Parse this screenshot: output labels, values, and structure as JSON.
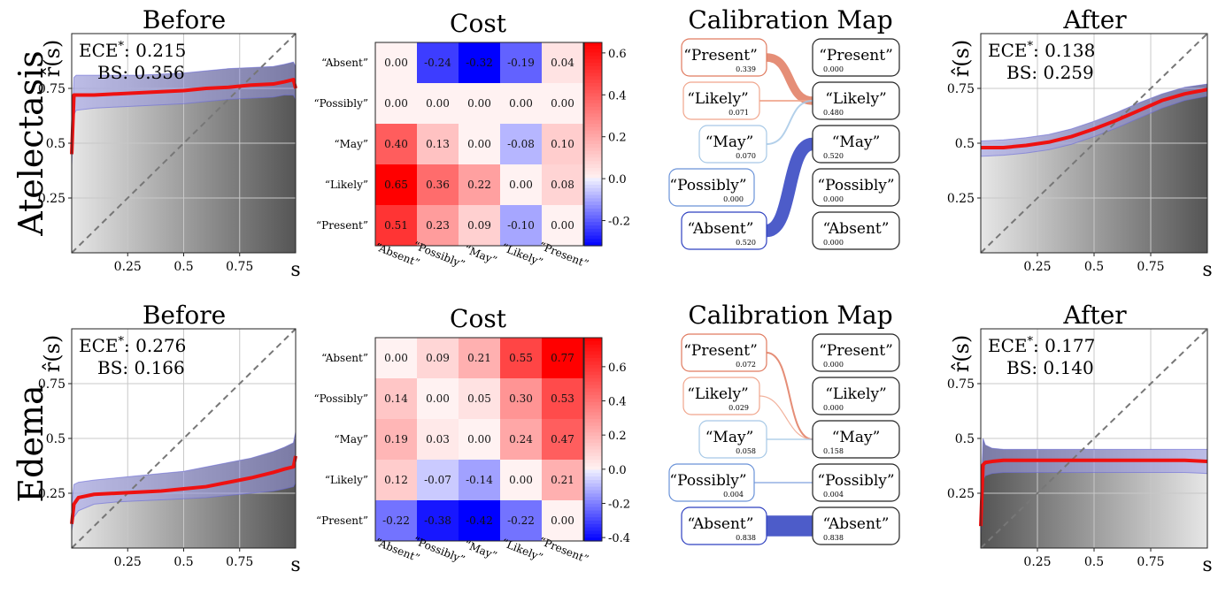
{
  "row_labels": [
    "Atelectasis",
    "Edema"
  ],
  "panel_titles": {
    "before": "Before",
    "cost": "Cost",
    "map": "Calibration Map",
    "after": "After"
  },
  "axes": {
    "y_label": "r̂(s)",
    "x_label": "s",
    "x_ticks": [
      "0.25",
      "0.5",
      "0.75"
    ],
    "y_ticks": [
      "0.25",
      "0.5",
      "0.75"
    ]
  },
  "labels": [
    "“Absent”",
    "“Possibly”",
    "“May”",
    "“Likely”",
    "“Present”"
  ],
  "colors": {
    "calibration_line": "#ee1111",
    "band": "#9a9ae8",
    "diagonal": "#777777",
    "cost_min": "#0000ff",
    "cost_max": "#ff0000",
    "map_present": "#e07050",
    "map_absent": "#2e40c0"
  },
  "chart_data": [
    {
      "type": "line",
      "panel": "before",
      "row": "Atelectasis",
      "title": "Before",
      "xlabel": "s",
      "ylabel": "r̂(s)",
      "metrics": {
        "ECE": "0.215",
        "BS": "0.356"
      },
      "xlim": [
        0,
        1
      ],
      "ylim": [
        0,
        1
      ],
      "diagonal": true,
      "x": [
        0,
        0.01,
        0.02,
        0.1,
        0.2,
        0.3,
        0.4,
        0.5,
        0.6,
        0.7,
        0.8,
        0.9,
        0.95,
        0.99,
        1.0
      ],
      "y": [
        0.45,
        0.72,
        0.72,
        0.72,
        0.725,
        0.73,
        0.735,
        0.74,
        0.75,
        0.755,
        0.765,
        0.77,
        0.78,
        0.79,
        0.75
      ],
      "upper": [
        0.55,
        0.8,
        0.81,
        0.81,
        0.81,
        0.81,
        0.815,
        0.82,
        0.83,
        0.84,
        0.845,
        0.85,
        0.86,
        0.87,
        0.85
      ],
      "lower": [
        0.4,
        0.63,
        0.65,
        0.66,
        0.665,
        0.67,
        0.675,
        0.68,
        0.69,
        0.7,
        0.705,
        0.71,
        0.72,
        0.72,
        0.7
      ]
    },
    {
      "type": "heatmap",
      "panel": "cost",
      "row": "Atelectasis",
      "title": "Cost",
      "rows": [
        "“Absent”",
        "“Possibly”",
        "“May”",
        "“Likely”",
        "“Present”"
      ],
      "cols": [
        "“Absent”",
        "“Possibly”",
        "“May”",
        "“Likely”",
        "“Present”"
      ],
      "values": [
        [
          "0.00",
          "-0.24",
          "-0.32",
          "-0.19",
          "0.04"
        ],
        [
          "0.00",
          "0.00",
          "0.00",
          "0.00",
          "0.00"
        ],
        [
          "0.40",
          "0.13",
          "0.00",
          "-0.08",
          "0.10"
        ],
        [
          "0.65",
          "0.36",
          "0.22",
          "0.00",
          "0.08"
        ],
        [
          "0.51",
          "0.23",
          "0.09",
          "-0.10",
          "0.00"
        ]
      ],
      "vmin": -0.32,
      "vmax": 0.65,
      "colorbar_ticks": [
        "0.6",
        "0.4",
        "0.2",
        "0.0",
        "-0.2"
      ]
    },
    {
      "type": "sankey",
      "panel": "map",
      "row": "Atelectasis",
      "title": "Calibration Map",
      "left": [
        {
          "label": "“Present”",
          "value": "0.339"
        },
        {
          "label": "“Likely”",
          "value": "0.071"
        },
        {
          "label": "“May”",
          "value": "0.070"
        },
        {
          "label": "“Possibly”",
          "value": "0.000"
        },
        {
          "label": "“Absent”",
          "value": "0.520"
        }
      ],
      "right": [
        {
          "label": "“Present”",
          "value": "0.000"
        },
        {
          "label": "“Likely”",
          "value": "0.480"
        },
        {
          "label": "“May”",
          "value": "0.520"
        },
        {
          "label": "“Possibly”",
          "value": "0.000"
        },
        {
          "label": "“Absent”",
          "value": "0.000"
        }
      ],
      "flows": [
        {
          "from": 0,
          "to": 1,
          "weight": 0.339
        },
        {
          "from": 1,
          "to": 1,
          "weight": 0.071
        },
        {
          "from": 2,
          "to": 1,
          "weight": 0.07
        },
        {
          "from": 4,
          "to": 2,
          "weight": 0.52
        }
      ]
    },
    {
      "type": "line",
      "panel": "after",
      "row": "Atelectasis",
      "title": "After",
      "xlabel": "s",
      "ylabel": "r̂(s)",
      "metrics": {
        "ECE": "0.138",
        "BS": "0.259"
      },
      "xlim": [
        0,
        1
      ],
      "ylim": [
        0,
        1
      ],
      "diagonal": true,
      "x": [
        0,
        0.1,
        0.2,
        0.3,
        0.4,
        0.5,
        0.6,
        0.7,
        0.8,
        0.9,
        1.0
      ],
      "y": [
        0.48,
        0.48,
        0.49,
        0.505,
        0.53,
        0.565,
        0.605,
        0.65,
        0.695,
        0.725,
        0.745
      ],
      "upper": [
        0.51,
        0.515,
        0.525,
        0.54,
        0.565,
        0.6,
        0.64,
        0.685,
        0.725,
        0.755,
        0.77
      ],
      "lower": [
        0.44,
        0.445,
        0.455,
        0.47,
        0.495,
        0.53,
        0.57,
        0.615,
        0.66,
        0.695,
        0.715
      ]
    },
    {
      "type": "line",
      "panel": "before",
      "row": "Edema",
      "title": "Before",
      "xlabel": "s",
      "ylabel": "r̂(s)",
      "metrics": {
        "ECE": "0.276",
        "BS": "0.166"
      },
      "xlim": [
        0,
        1
      ],
      "ylim": [
        0,
        1
      ],
      "diagonal": true,
      "x": [
        0,
        0.01,
        0.03,
        0.1,
        0.2,
        0.3,
        0.4,
        0.5,
        0.6,
        0.7,
        0.8,
        0.9,
        0.95,
        0.99,
        1.0
      ],
      "y": [
        0.11,
        0.2,
        0.23,
        0.245,
        0.25,
        0.255,
        0.26,
        0.27,
        0.28,
        0.3,
        0.32,
        0.345,
        0.36,
        0.37,
        0.42
      ],
      "upper": [
        0.2,
        0.29,
        0.3,
        0.31,
        0.32,
        0.33,
        0.34,
        0.35,
        0.37,
        0.39,
        0.41,
        0.44,
        0.46,
        0.48,
        0.53
      ],
      "lower": [
        0.08,
        0.14,
        0.17,
        0.2,
        0.21,
        0.215,
        0.22,
        0.225,
        0.23,
        0.24,
        0.25,
        0.26,
        0.27,
        0.28,
        0.3
      ]
    },
    {
      "type": "heatmap",
      "panel": "cost",
      "row": "Edema",
      "title": "Cost",
      "rows": [
        "“Absent”",
        "“Possibly”",
        "“May”",
        "“Likely”",
        "“Present”"
      ],
      "cols": [
        "“Absent”",
        "“Possibly”",
        "“May”",
        "“Likely”",
        "“Present”"
      ],
      "values": [
        [
          "0.00",
          "0.09",
          "0.21",
          "0.55",
          "0.77"
        ],
        [
          "0.14",
          "0.00",
          "0.05",
          "0.30",
          "0.53"
        ],
        [
          "0.19",
          "0.03",
          "0.00",
          "0.24",
          "0.47"
        ],
        [
          "0.12",
          "-0.07",
          "-0.14",
          "0.00",
          "0.21"
        ],
        [
          "-0.22",
          "-0.38",
          "-0.42",
          "-0.22",
          "0.00"
        ]
      ],
      "vmin": -0.42,
      "vmax": 0.77,
      "colorbar_ticks": [
        "0.6",
        "0.4",
        "0.2",
        "0.0",
        "-0.2",
        "-0.4"
      ]
    },
    {
      "type": "sankey",
      "panel": "map",
      "row": "Edema",
      "title": "Calibration Map",
      "left": [
        {
          "label": "“Present”",
          "value": "0.072"
        },
        {
          "label": "“Likely”",
          "value": "0.029"
        },
        {
          "label": "“May”",
          "value": "0.058"
        },
        {
          "label": "“Possibly”",
          "value": "0.004"
        },
        {
          "label": "“Absent”",
          "value": "0.838"
        }
      ],
      "right": [
        {
          "label": "“Present”",
          "value": "0.000"
        },
        {
          "label": "“Likely”",
          "value": "0.000"
        },
        {
          "label": "“May”",
          "value": "0.158"
        },
        {
          "label": "“Possibly”",
          "value": "0.004"
        },
        {
          "label": "“Absent”",
          "value": "0.838"
        }
      ],
      "flows": [
        {
          "from": 0,
          "to": 2,
          "weight": 0.072
        },
        {
          "from": 1,
          "to": 2,
          "weight": 0.029
        },
        {
          "from": 2,
          "to": 2,
          "weight": 0.058
        },
        {
          "from": 3,
          "to": 3,
          "weight": 0.004
        },
        {
          "from": 4,
          "to": 4,
          "weight": 0.838
        }
      ]
    },
    {
      "type": "line",
      "panel": "after",
      "row": "Edema",
      "title": "After",
      "xlabel": "s",
      "ylabel": "r̂(s)",
      "metrics": {
        "ECE": "0.177",
        "BS": "0.140"
      },
      "xlim": [
        0,
        1
      ],
      "ylim": [
        0,
        1
      ],
      "diagonal": true,
      "x": [
        0,
        0.01,
        0.02,
        0.05,
        0.1,
        0.2,
        0.3,
        0.4,
        0.5,
        0.6,
        0.7,
        0.8,
        0.9,
        1.0
      ],
      "y": [
        0.1,
        0.38,
        0.39,
        0.395,
        0.4,
        0.4,
        0.4,
        0.4,
        0.4,
        0.4,
        0.4,
        0.4,
        0.4,
        0.395
      ],
      "upper": [
        0.2,
        0.5,
        0.47,
        0.455,
        0.45,
        0.45,
        0.45,
        0.45,
        0.45,
        0.45,
        0.45,
        0.45,
        0.45,
        0.45
      ],
      "lower": [
        0.06,
        0.31,
        0.33,
        0.34,
        0.345,
        0.345,
        0.345,
        0.345,
        0.345,
        0.345,
        0.345,
        0.345,
        0.345,
        0.34
      ]
    }
  ]
}
